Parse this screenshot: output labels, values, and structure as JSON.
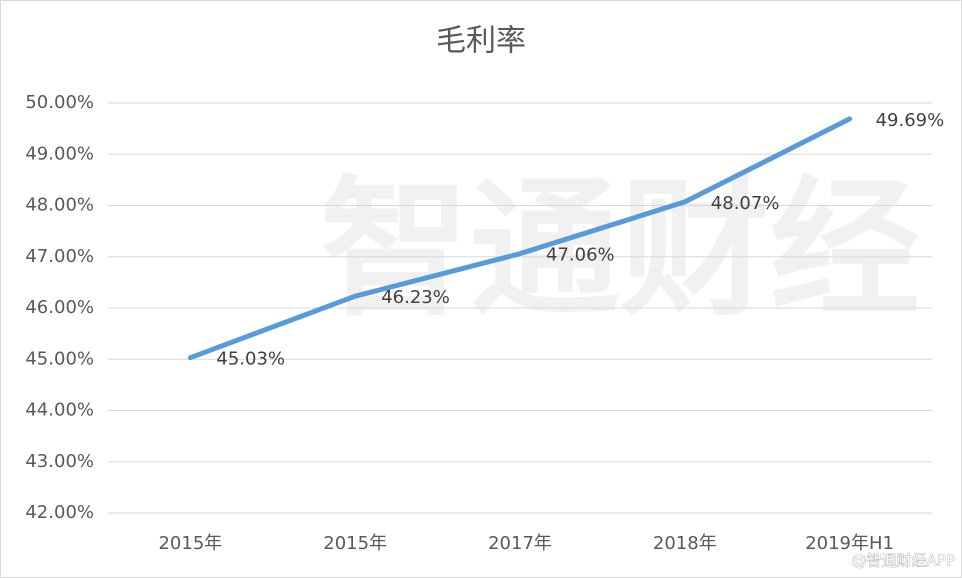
{
  "chart_data": {
    "type": "line",
    "title": "毛利率",
    "categories": [
      "2015年",
      "2015年",
      "2017年",
      "2018年",
      "2019年H1"
    ],
    "series": [
      {
        "name": "毛利率",
        "color": "#5b9bd5",
        "values": [
          45.03,
          46.23,
          47.06,
          48.07,
          49.69
        ],
        "value_labels": [
          "45.03%",
          "46.23%",
          "47.06%",
          "48.07%",
          "49.69%"
        ]
      }
    ],
    "ylim": [
      42,
      50
    ],
    "yticks": [
      {
        "value": 42,
        "label": "42.00%"
      },
      {
        "value": 43,
        "label": "43.00%"
      },
      {
        "value": 44,
        "label": "44.00%"
      },
      {
        "value": 45,
        "label": "45.00%"
      },
      {
        "value": 46,
        "label": "46.00%"
      },
      {
        "value": 47,
        "label": "47.00%"
      },
      {
        "value": 48,
        "label": "48.00%"
      },
      {
        "value": 49,
        "label": "49.00%"
      },
      {
        "value": 50,
        "label": "50.00%"
      }
    ],
    "grid": true,
    "watermark": "智通财经",
    "credit": "@智通财经APP"
  }
}
